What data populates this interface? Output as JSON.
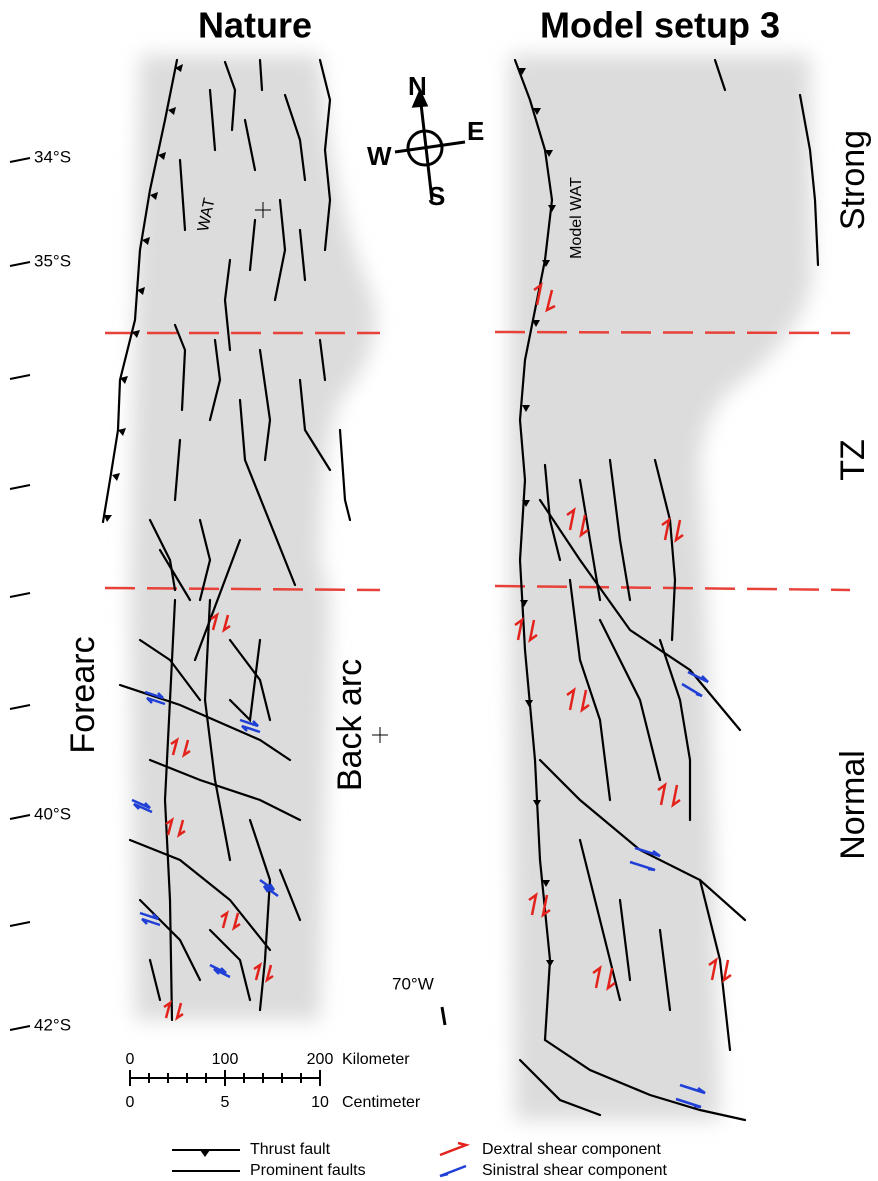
{
  "titles": {
    "left": "Nature",
    "right": "Model setup 3"
  },
  "compass": {
    "north": "N",
    "east": "E",
    "south": "S",
    "west": "W"
  },
  "latitudes": [
    "34°S",
    "35°S",
    "40°S",
    "42°S"
  ],
  "labels": {
    "wat": "WAT",
    "model_wat": "Model WAT",
    "forearc": "Forearc",
    "back_arc": "Back arc",
    "longitude": "70°W"
  },
  "zones": [
    "Strong",
    "TZ",
    "Normal"
  ],
  "scale_bar": {
    "top": [
      "0",
      "100",
      "200"
    ],
    "top_unit": "Kilometer",
    "bottom": [
      "0",
      "5",
      "10"
    ],
    "bottom_unit": "Centimeter"
  },
  "legend": [
    "Thrust fault",
    "Prominent faults",
    "Dextral shear component",
    "Sinistral shear component"
  ]
}
